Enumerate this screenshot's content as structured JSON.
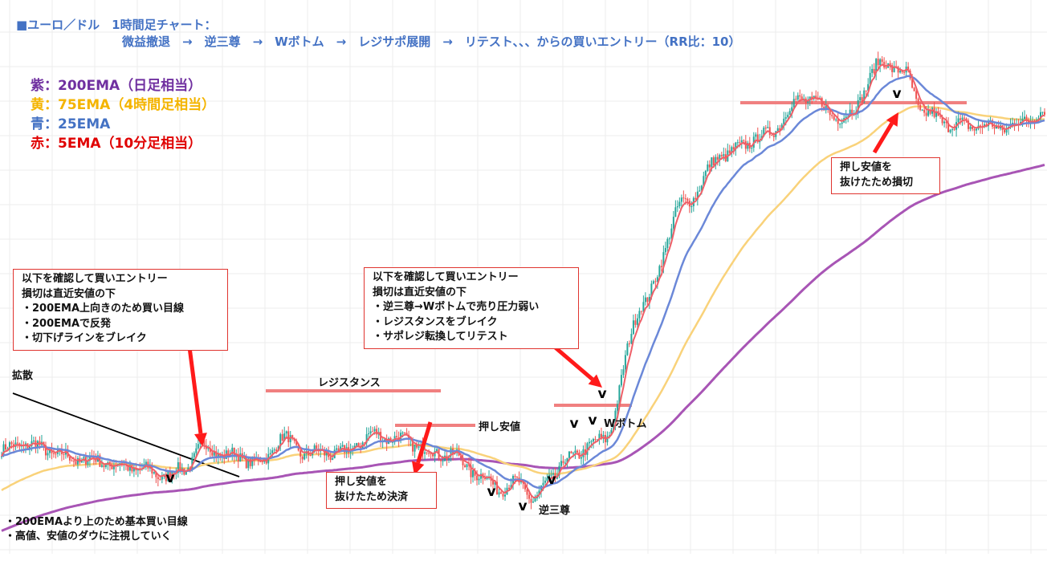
{
  "header": {
    "line1": "■ユーロ／ドル　1時間足チャート：",
    "line2": "微益撤退　→　逆三尊　→　Wボトム　→　レジサポ展開　→　リテスト、、、からの買いエントリー（RR比：10）"
  },
  "legend": [
    {
      "text": "紫：200EMA（日足相当）",
      "color": "#7030a0"
    },
    {
      "text": "黄：75EMA（4時間足相当）",
      "color": "#f4b400"
    },
    {
      "text": "青：25EMA",
      "color": "#4472c4"
    },
    {
      "text": "赤：5EMA（10分足相当）",
      "color": "#e00000"
    }
  ],
  "colors": {
    "candle_up": "#26a69a",
    "candle_down": "#ef5350",
    "ema200": "#a855b5",
    "ema75": "#f9d27a",
    "ema25": "#6b88d8",
    "ema5": "#ef5f68",
    "level_line": "#f08080",
    "arrow": "#ff1a1a",
    "trendline": "#000000"
  },
  "boxes": {
    "entry1": [
      "以下を確認して買いエントリー",
      "損切は直近安値の下",
      "・200EMA上向きのため買い目線",
      "・200EMAで反発",
      "・切下げラインをブレイク"
    ],
    "entry2": [
      "以下を確認して買いエントリー",
      "損切は直近安値の下",
      "・逆三尊→Wボトムで売り圧力弱い",
      "・レジスタンスをブレイク",
      "・サポレジ転換してリテスト"
    ],
    "exit1": [
      "押し安値を",
      "抜けたため決済"
    ],
    "exit2": [
      "押し安値を",
      "抜けたため損切"
    ]
  },
  "labels": {
    "kakusan": "拡散",
    "resistance": "レジスタンス",
    "oshi_yasune": "押し安値",
    "w_bottom": "Wボトム",
    "gyaku_sanzon": "逆三尊",
    "note1": "・200EMAより上のため基本買い目線",
    "note2": "・高値、安値のダウに注視していく",
    "check_mark": "v"
  },
  "chart_data": {
    "type": "candlestick",
    "title": "",
    "xlabel": "",
    "ylabel": "",
    "axes_visible": false,
    "grid": true,
    "price_path_note": "",
    "trend_keypoints": [
      {
        "i": 0,
        "p": 28
      },
      {
        "i": 10,
        "p": 31
      },
      {
        "i": 40,
        "p": 24
      },
      {
        "i": 70,
        "p": 20
      },
      {
        "i": 78,
        "p": 17
      },
      {
        "i": 90,
        "p": 19
      },
      {
        "i": 100,
        "p": 30
      },
      {
        "i": 112,
        "p": 26
      },
      {
        "i": 130,
        "p": 23
      },
      {
        "i": 140,
        "p": 34
      },
      {
        "i": 150,
        "p": 27
      },
      {
        "i": 170,
        "p": 27
      },
      {
        "i": 185,
        "p": 35
      },
      {
        "i": 200,
        "p": 33
      },
      {
        "i": 215,
        "p": 27
      },
      {
        "i": 225,
        "p": 26
      },
      {
        "i": 240,
        "p": 16
      },
      {
        "i": 250,
        "p": 11
      },
      {
        "i": 258,
        "p": 14
      },
      {
        "i": 265,
        "p": 6
      },
      {
        "i": 275,
        "p": 17
      },
      {
        "i": 282,
        "p": 24
      },
      {
        "i": 295,
        "p": 31
      },
      {
        "i": 300,
        "p": 33
      },
      {
        "i": 320,
        "p": 94
      },
      {
        "i": 340,
        "p": 138
      },
      {
        "i": 360,
        "p": 160
      },
      {
        "i": 380,
        "p": 168
      },
      {
        "i": 400,
        "p": 185
      },
      {
        "i": 420,
        "p": 176
      },
      {
        "i": 440,
        "p": 201
      },
      {
        "i": 450,
        "p": 196
      },
      {
        "i": 460,
        "p": 178
      },
      {
        "i": 475,
        "p": 173
      },
      {
        "i": 500,
        "p": 172
      },
      {
        "i": 520,
        "p": 178
      }
    ],
    "levels": [
      "resistance",
      "oshi_yasune",
      "w_bottom_neck",
      "top_resistance"
    ]
  }
}
